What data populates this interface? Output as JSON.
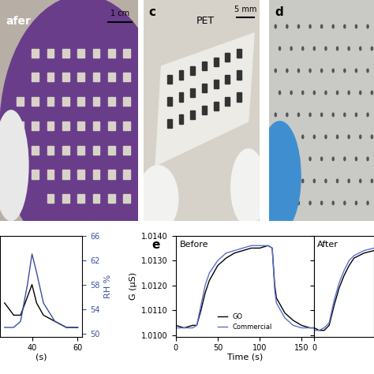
{
  "photos": [
    {
      "label": "afer",
      "scale_bar": "1 cm"
    },
    {
      "panel": "c",
      "label": "PET",
      "scale_bar": "5 mm"
    },
    {
      "panel": "d"
    }
  ],
  "chart_data": [
    {
      "type": "line",
      "xlabel": "(s)",
      "ylabel": "RH %",
      "xlim": [
        26,
        62
      ],
      "xticks": [
        40,
        60
      ],
      "ylim": [
        49.5,
        66
      ],
      "yticks": [
        50,
        54,
        58,
        62,
        66
      ],
      "x": [
        28,
        32,
        35,
        38,
        40,
        42,
        45,
        50,
        55,
        60
      ],
      "series": [
        {
          "color": "#000000",
          "values": [
            55,
            53,
            53,
            56,
            58,
            55,
            53,
            52,
            51,
            51
          ]
        },
        {
          "color": "#3a4fa0",
          "values": [
            51,
            51,
            52,
            58,
            63,
            60,
            55,
            52,
            51,
            51
          ]
        }
      ]
    },
    {
      "type": "line",
      "panel": "e",
      "title": "Before",
      "xlabel": "Time (s)",
      "ylabel": "G (µS)",
      "xlim": [
        0,
        165
      ],
      "xticks": [
        0,
        50,
        100,
        150
      ],
      "ylim": [
        1.00995,
        1.014
      ],
      "yticks": [
        {
          "value": 1.01,
          "label": "1.0100"
        },
        {
          "value": 1.011,
          "label": "1.0110"
        },
        {
          "value": 1.012,
          "label": "1.0120"
        },
        {
          "value": 1.013,
          "label": "1.0130"
        },
        {
          "value": 1.014,
          "label": "1.0140"
        }
      ],
      "legend": "lower center",
      "x": [
        0,
        10,
        20,
        25,
        30,
        35,
        40,
        50,
        60,
        70,
        80,
        90,
        100,
        110,
        115,
        118,
        120,
        125,
        130,
        140,
        150,
        160,
        165
      ],
      "series": [
        {
          "name": "GO",
          "color": "#000000",
          "values": [
            1.0104,
            1.0103,
            1.0104,
            1.0104,
            1.011,
            1.0117,
            1.0122,
            1.0128,
            1.0131,
            1.0133,
            1.0134,
            1.0135,
            1.0135,
            1.0136,
            1.0135,
            1.012,
            1.0115,
            1.0112,
            1.0109,
            1.0106,
            1.0104,
            1.0103,
            1.0103
          ]
        },
        {
          "name": "Commercial",
          "color": "#5a6fd0",
          "values": [
            1.0103,
            1.0103,
            1.0103,
            1.0104,
            1.0112,
            1.012,
            1.0125,
            1.013,
            1.0133,
            1.0134,
            1.0135,
            1.0136,
            1.0136,
            1.0136,
            1.0135,
            1.0118,
            1.0113,
            1.011,
            1.0107,
            1.0104,
            1.0103,
            1.0103,
            1.0103
          ]
        }
      ]
    },
    {
      "type": "line",
      "title": "After",
      "tick_labels": "x",
      "xlim": [
        0,
        60
      ],
      "xticks": [
        0
      ],
      "ylim": [
        1.00995,
        1.014
      ],
      "yticks": [
        1.01,
        1.011,
        1.012,
        1.013,
        1.014
      ],
      "x": [
        0,
        5,
        10,
        15,
        20,
        25,
        30,
        35,
        40,
        50,
        60
      ],
      "series": [
        {
          "color": "#000000",
          "values": [
            1.0103,
            1.0102,
            1.0102,
            1.0104,
            1.0112,
            1.0119,
            1.0124,
            1.0128,
            1.0131,
            1.0133,
            1.0134
          ]
        },
        {
          "color": "#5a6fd0",
          "values": [
            1.0102,
            1.0102,
            1.0103,
            1.0105,
            1.0114,
            1.0121,
            1.0126,
            1.013,
            1.0132,
            1.0134,
            1.0135
          ]
        }
      ]
    }
  ]
}
